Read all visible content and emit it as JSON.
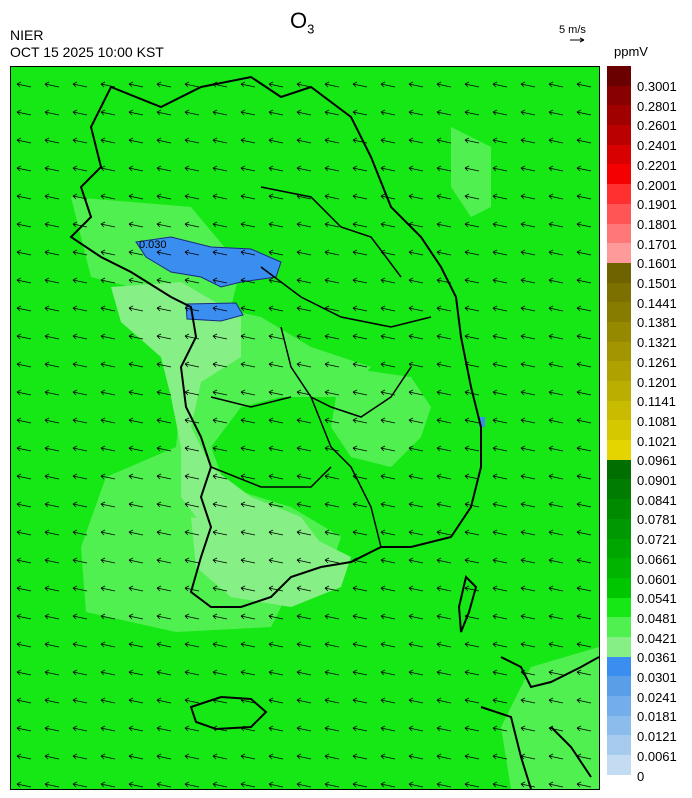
{
  "header": {
    "title_main": "O",
    "title_sub": "3",
    "agency": "NIER",
    "datetime": "OCT 15 2025 10:00 KST",
    "wind_scale": "5 m/s",
    "unit": "ppmV"
  },
  "colorbar": {
    "labels": [
      "0.3001",
      "0.2801",
      "0.2601",
      "0.2401",
      "0.2201",
      "0.2001",
      "0.1901",
      "0.1801",
      "0.1701",
      "0.1601",
      "0.1501",
      "0.1441",
      "0.1381",
      "0.1321",
      "0.1261",
      "0.1201",
      "0.1141",
      "0.1081",
      "0.1021",
      "0.0961",
      "0.0901",
      "0.0841",
      "0.0781",
      "0.0721",
      "0.0661",
      "0.0601",
      "0.0541",
      "0.0481",
      "0.0421",
      "0.0361",
      "0.0301",
      "0.0241",
      "0.0181",
      "0.0121",
      "0.0061",
      "0"
    ],
    "colors": [
      "#6b0000",
      "#880000",
      "#a00000",
      "#bb0000",
      "#d80000",
      "#f40000",
      "#ff3030",
      "#ff5555",
      "#ff7878",
      "#ff9a9a",
      "#6f6300",
      "#7c7000",
      "#887c00",
      "#958900",
      "#a29500",
      "#afa200",
      "#bcae00",
      "#c8bb00",
      "#d6c800",
      "#e4d500",
      "#006e00",
      "#007c00",
      "#008a00",
      "#009800",
      "#00a600",
      "#00b400",
      "#00c600",
      "#16e816",
      "#50f050",
      "#86f086",
      "#3a8ef0",
      "#5a9ee8",
      "#73adea",
      "#8cbcec",
      "#a6cbee",
      "#c4dcf2"
    ],
    "map_colors": {
      "background": "#16e816",
      "light": "#86f086",
      "mid": "#50f050",
      "high_blue": "#3a8ef0"
    }
  },
  "map": {
    "label_contour": "0.030"
  }
}
